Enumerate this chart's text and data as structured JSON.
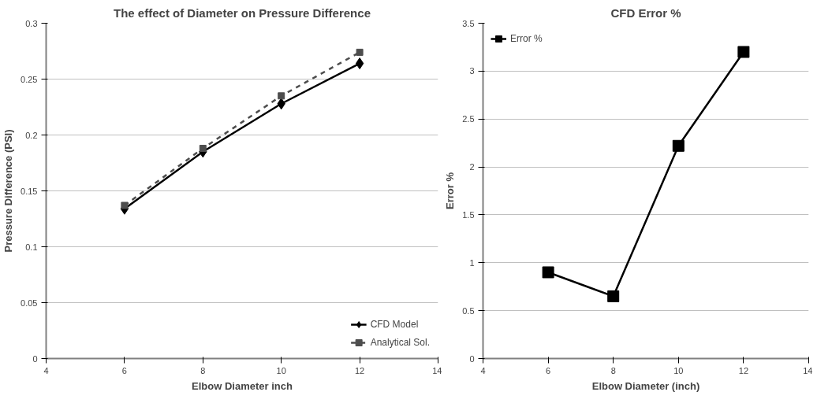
{
  "chart_data": [
    {
      "type": "line",
      "title": "The effect of Diameter on Pressure Difference",
      "xlabel": "Elbow Diameter inch",
      "ylabel": "Pressure Difference (PSI)",
      "x": [
        6,
        8,
        10,
        12
      ],
      "xlim": [
        4,
        14
      ],
      "xticks": [
        4,
        6,
        8,
        10,
        12,
        14
      ],
      "ylim": [
        0,
        0.3
      ],
      "yticks": [
        0,
        0.05,
        0.1,
        0.15,
        0.2,
        0.25,
        0.3
      ],
      "grid": "y",
      "legend": "bottom right",
      "series": [
        {
          "name": "CFD Model",
          "color": "#000000",
          "values": [
            0.134,
            0.185,
            0.228,
            0.264
          ],
          "marker": "diamond",
          "line_style": "solid"
        },
        {
          "name": "Analytical Sol.",
          "color": "#4d4d4d",
          "values": [
            0.137,
            0.188,
            0.235,
            0.274
          ],
          "marker": "square",
          "line_style": "dashed"
        }
      ]
    },
    {
      "type": "line",
      "title": "CFD Error %",
      "xlabel": "Elbow Diameter (inch)",
      "ylabel": "Error %",
      "x": [
        6,
        8,
        10,
        12
      ],
      "xlim": [
        4,
        14
      ],
      "xticks": [
        4,
        6,
        8,
        10,
        12,
        14
      ],
      "ylim": [
        0,
        3.5
      ],
      "yticks": [
        0,
        0.5,
        1,
        1.5,
        2,
        2.5,
        3,
        3.5
      ],
      "grid": "y",
      "legend": "top left",
      "marker": "square",
      "line_style": "solid",
      "series": [
        {
          "name": "Error %",
          "color": "#000000",
          "values": [
            0.9,
            0.65,
            2.22,
            3.2
          ]
        }
      ]
    }
  ]
}
